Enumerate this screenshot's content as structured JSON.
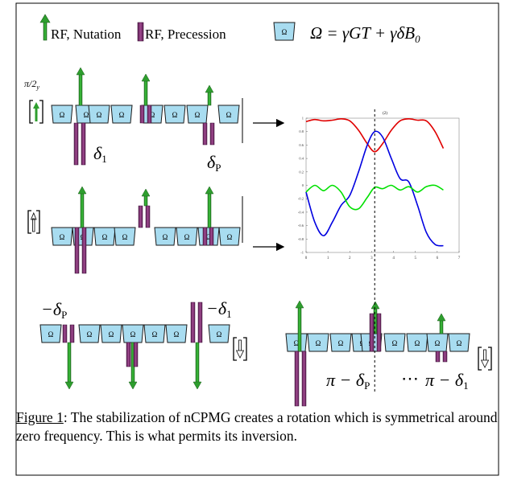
{
  "legend": {
    "nutation_label": "RF,  Nutation",
    "precession_label": "RF, Precession",
    "box_symbol": "Ω",
    "equation": "Ω = γGT + γδB",
    "equation_sub": "0"
  },
  "pulse_label": "π/2",
  "pulse_label_sub": "y",
  "box_symbol": "Ω",
  "delta_labels": {
    "d1": "δ",
    "d1_sub": "1",
    "dP": "δ",
    "dP_sub": "P",
    "neg_dP": "−δ",
    "neg_dP_sub": "P",
    "neg_d1": "−δ",
    "neg_d1_sub": "1",
    "pi_minus_dP": "π − δ",
    "pi_minus_dP_sub": "P",
    "ellipsis": "⋯",
    "pi_minus_d1": "π − δ",
    "pi_minus_d1_sub": "1"
  },
  "inset_chart": {
    "x_ticks": [
      "0",
      "1",
      "2",
      "3",
      "4",
      "5",
      "6",
      "7"
    ],
    "y_ticks": [
      "1",
      "0.8",
      "0.6",
      "0.4",
      "0.2",
      "0",
      "-0.2",
      "-0.4",
      "-0.6",
      "-0.8",
      "-1"
    ],
    "top_label": "(2)"
  },
  "chart_data": {
    "type": "line",
    "xlim": [
      0,
      7
    ],
    "ylim": [
      -1,
      1
    ],
    "x_ticks": [
      0,
      1,
      2,
      3,
      4,
      5,
      6,
      7
    ],
    "y_ticks": [
      1,
      0.8,
      0.6,
      0.4,
      0.2,
      0,
      -0.2,
      -0.4,
      -0.6,
      -0.8,
      -1
    ],
    "series": [
      {
        "color": "#e00000",
        "x": [
          0,
          0.4,
          0.8,
          1.2,
          1.6,
          2.0,
          2.4,
          2.8,
          3.14,
          3.5,
          3.9,
          4.3,
          4.7,
          5.1,
          5.5,
          5.9,
          6.28
        ],
        "y": [
          0.95,
          0.98,
          0.96,
          0.97,
          0.99,
          0.96,
          0.82,
          0.62,
          0.5,
          0.62,
          0.82,
          0.96,
          0.99,
          0.97,
          0.96,
          0.8,
          0.55
        ]
      },
      {
        "color": "#0000e0",
        "x": [
          0,
          0.4,
          0.8,
          1.2,
          1.6,
          2.0,
          2.4,
          2.8,
          3.14,
          3.5,
          3.9,
          4.3,
          4.7,
          5.1,
          5.5,
          5.9,
          6.28
        ],
        "y": [
          -0.1,
          -0.55,
          -0.75,
          -0.55,
          -0.3,
          -0.15,
          0.2,
          0.6,
          0.8,
          0.72,
          0.4,
          0.1,
          0.05,
          -0.3,
          -0.7,
          -0.88,
          -0.9
        ]
      },
      {
        "color": "#00e000",
        "x": [
          0,
          0.4,
          0.8,
          1.2,
          1.6,
          2.0,
          2.4,
          2.8,
          3.14,
          3.5,
          3.9,
          4.3,
          4.7,
          5.1,
          5.5,
          5.9,
          6.28
        ],
        "y": [
          -0.1,
          0.0,
          -0.08,
          0.0,
          -0.1,
          -0.32,
          -0.35,
          -0.18,
          -0.03,
          -0.05,
          0.0,
          -0.07,
          -0.02,
          -0.1,
          -0.02,
          0.0,
          -0.07
        ]
      }
    ],
    "marker_x": 3.14
  },
  "caption": {
    "label": "Figure 1",
    "text": ": The stabilization of nCPMG creates a rotation which is symmetrical around zero frequency. This is what permits its inversion."
  },
  "colors": {
    "green_arrow": "#2e9e2e",
    "purple_bar": "#7b2d6e",
    "box_fill": "#a8dcf0"
  }
}
